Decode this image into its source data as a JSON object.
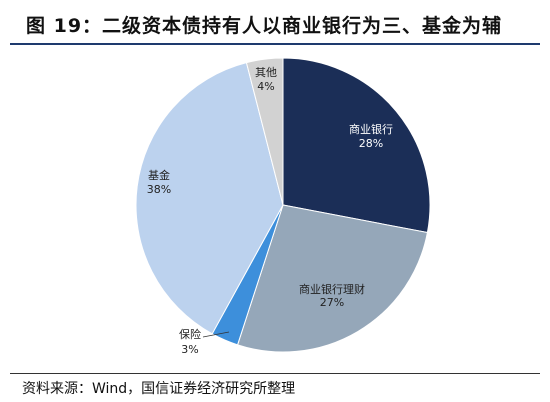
{
  "chart_data": {
    "type": "pie",
    "title": "图 19：二级资本债持有人以商业银行为三、基金为辅",
    "slices": [
      {
        "label": "商业银行",
        "value": 28,
        "value_label": "28%",
        "color": "#1b2e57"
      },
      {
        "label": "商业银行理财",
        "value": 27,
        "value_label": "27%",
        "color": "#95a7b9"
      },
      {
        "label": "保险",
        "value": 3,
        "value_label": "3%",
        "color": "#3d8fdb"
      },
      {
        "label": "基金",
        "value": 38,
        "value_label": "38%",
        "color": "#bcd2ee"
      },
      {
        "label": "其他",
        "value": 4,
        "value_label": "4%",
        "color": "#d2d2d2"
      }
    ],
    "legend": "none",
    "direction": "clockwise from top"
  },
  "source": "资料来源：Wind，国信证券经济研究所整理",
  "colors": {
    "title_rule": "#1e3a6e",
    "label_on_dark": "#ffffff",
    "label_default": "#222222"
  }
}
